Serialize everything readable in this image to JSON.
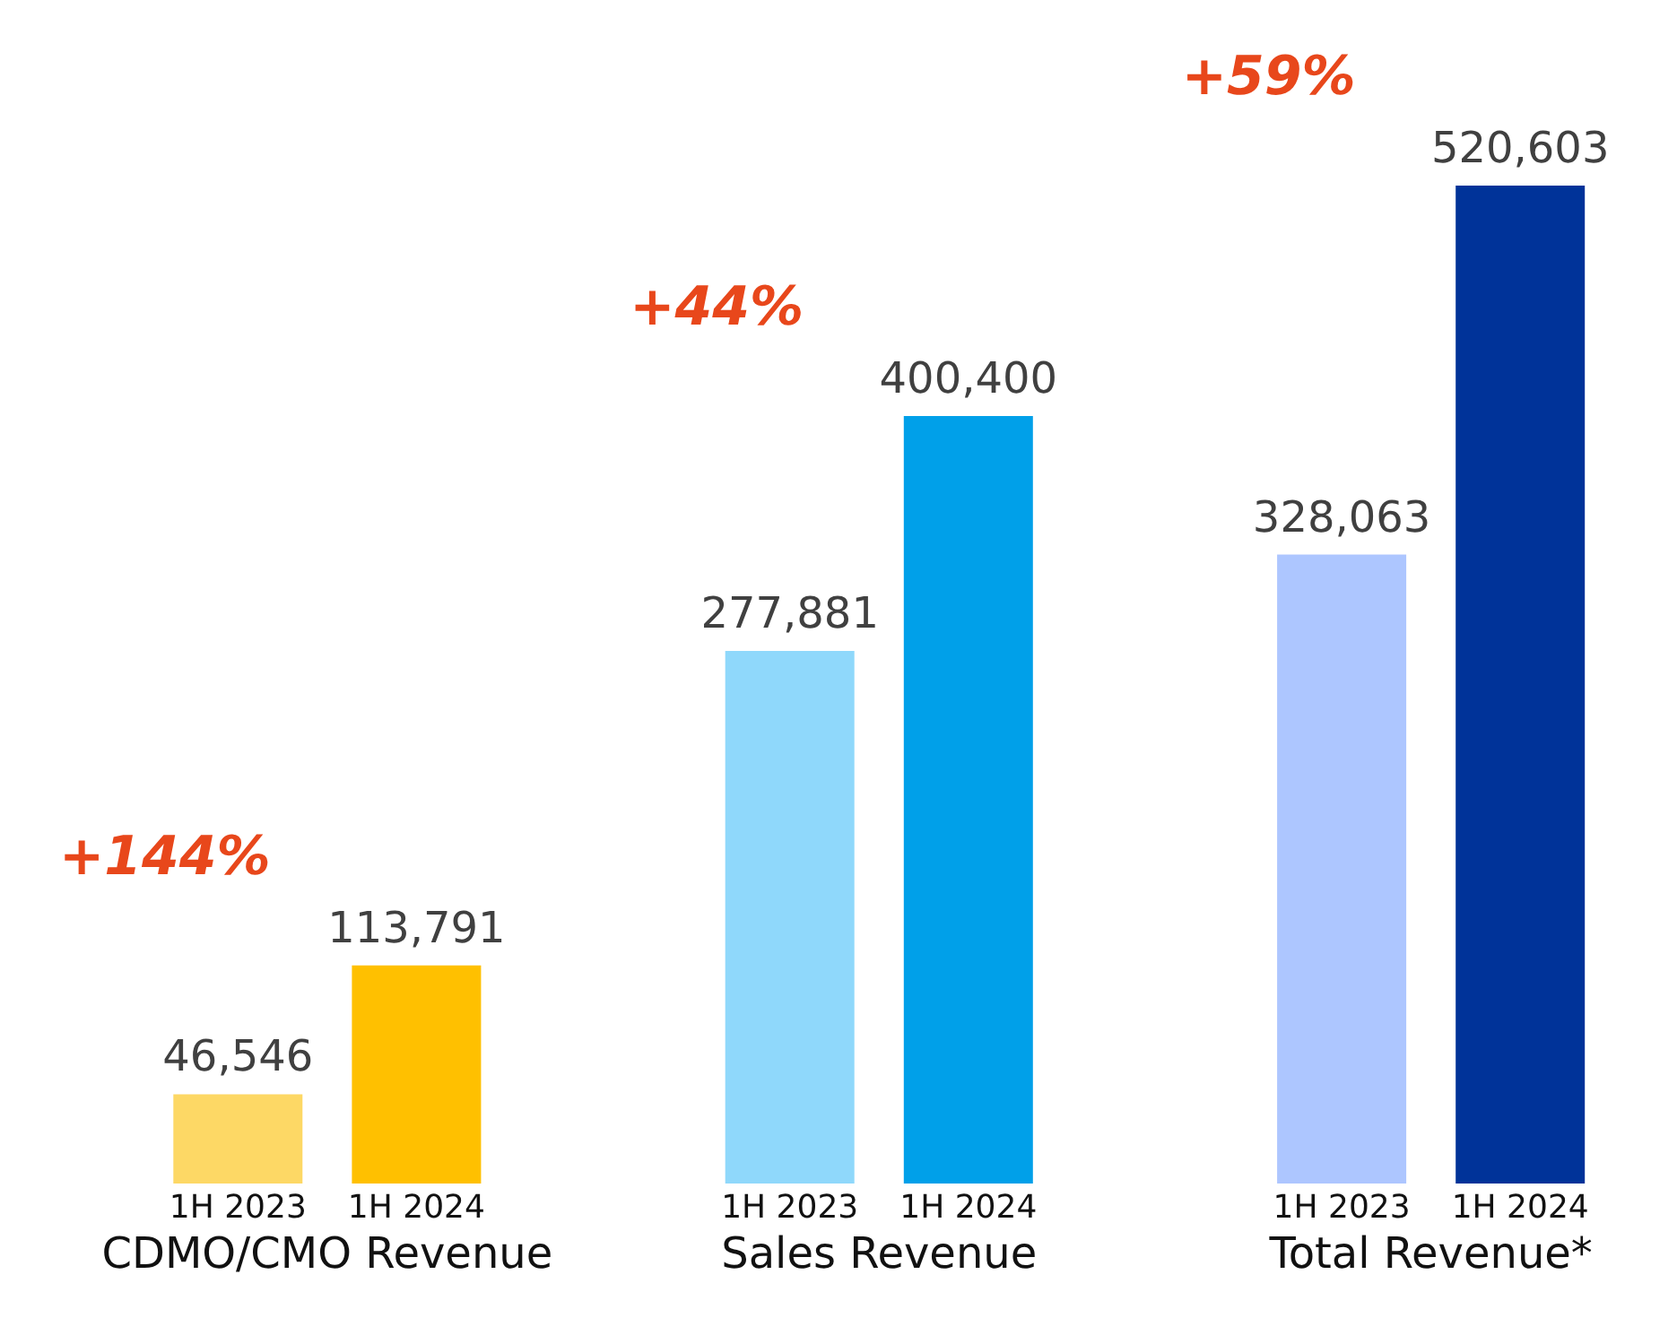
{
  "chart_data": {
    "type": "bar",
    "categories": [
      "CDMO/CMO Revenue",
      "Sales Revenue",
      "Total Revenue*"
    ],
    "series": [
      {
        "name": "1H 2023",
        "colors": [
          "#fdd865",
          "#8fd8fb",
          "#adc6ff"
        ],
        "values": [
          46546,
          277881,
          328063
        ],
        "value_labels": [
          "46,546",
          "277,881",
          "328,063"
        ]
      },
      {
        "name": "1H 2024",
        "colors": [
          "#ffc000",
          "#00a0e9",
          "#003399"
        ],
        "values": [
          113791,
          400400,
          520603
        ],
        "value_labels": [
          "113,791",
          "400,400",
          "520,603"
        ]
      }
    ],
    "tick_labels": "x",
    "annotations": [
      "+144%",
      "+44%",
      "+59%"
    ]
  }
}
